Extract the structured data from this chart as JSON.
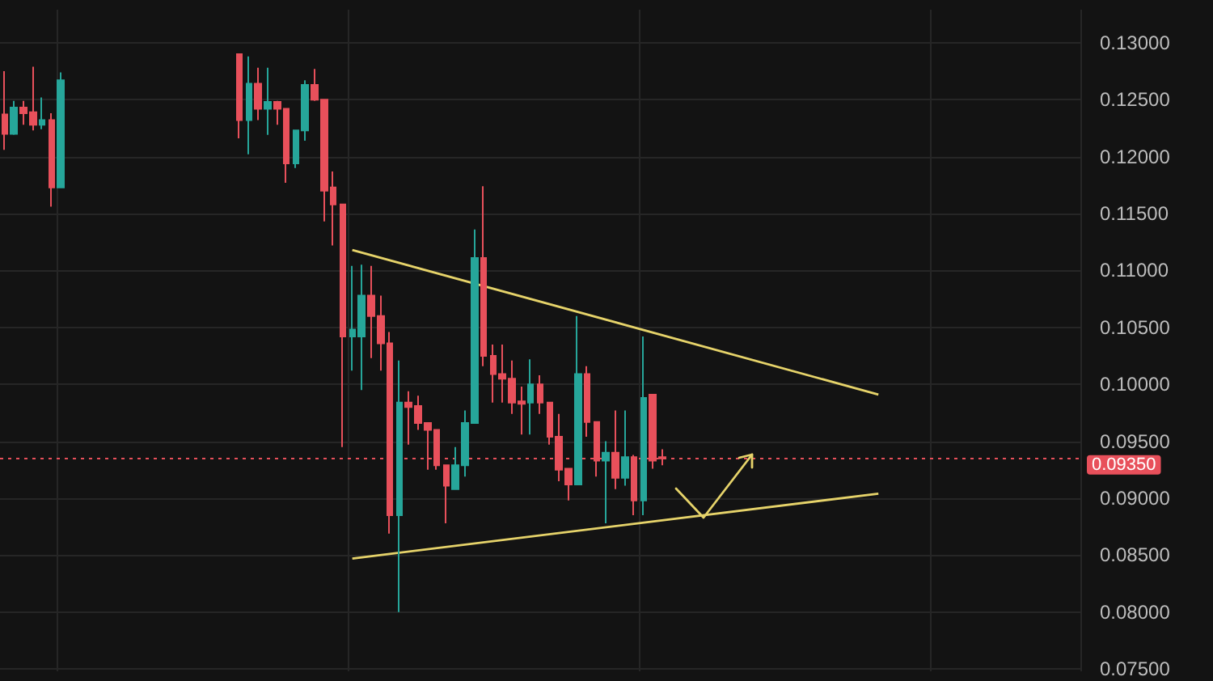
{
  "chart_data": {
    "type": "candlestick",
    "categories": [
      null,
      null,
      null,
      null,
      null,
      null,
      null,
      null,
      null,
      null,
      null,
      null,
      null,
      null,
      null,
      null,
      null,
      null,
      null,
      null,
      null,
      null,
      null,
      null,
      null,
      null,
      null,
      null,
      null,
      null,
      null,
      null,
      null,
      null,
      null,
      null,
      null,
      null,
      null,
      null,
      null,
      null,
      null,
      null,
      null,
      null,
      null,
      null,
      null,
      null,
      null,
      null,
      null,
      null,
      null,
      null,
      null,
      null,
      null,
      null,
      null,
      null,
      null,
      null,
      null,
      null,
      null,
      null,
      null,
      null,
      null,
      null,
      null,
      null,
      null,
      null,
      null,
      null,
      null,
      null,
      null,
      null,
      null,
      null,
      null,
      null,
      null,
      null,
      null,
      null,
      null,
      null,
      null,
      null,
      null,
      null,
      null,
      null,
      null,
      null,
      null,
      null,
      null,
      null,
      null,
      null,
      null,
      null,
      null,
      null,
      null,
      null,
      null,
      null,
      null
    ],
    "ohlc": [
      [
        0.1237,
        0.1275,
        0.1206,
        0.122
      ],
      [
        0.122,
        0.1249,
        0.1219,
        0.1243
      ],
      [
        0.1243,
        0.1249,
        0.1228,
        0.1238
      ],
      [
        0.1239,
        0.1279,
        0.1223,
        0.1228
      ],
      [
        0.1228,
        0.1252,
        0.1224,
        0.1232
      ],
      [
        0.1232,
        0.1238,
        0.1156,
        0.1173
      ],
      [
        0.1173,
        0.1274,
        0.1173,
        0.1267
      ],
      null,
      null,
      null,
      null,
      null,
      null,
      null,
      null,
      null,
      null,
      null,
      null,
      null,
      null,
      null,
      null,
      null,
      null,
      [
        0.129,
        0.129,
        0.1216,
        0.1232
      ],
      [
        0.1232,
        0.1288,
        0.1202,
        0.1264
      ],
      [
        0.1264,
        0.1278,
        0.1232,
        0.1242
      ],
      [
        0.1242,
        0.1278,
        0.1219,
        0.1248
      ],
      [
        0.1248,
        0.1249,
        0.1228,
        0.1242
      ],
      [
        0.1242,
        0.1242,
        0.1177,
        0.1194
      ],
      [
        0.1194,
        0.1223,
        0.119,
        0.1223
      ],
      [
        0.1223,
        0.1267,
        0.1214,
        0.1263
      ],
      [
        0.1263,
        0.1277,
        0.1249,
        0.125
      ],
      [
        0.125,
        0.125,
        0.1143,
        0.117
      ],
      [
        0.1173,
        0.1187,
        0.1122,
        0.1158
      ],
      [
        0.1158,
        0.1158,
        0.0945,
        0.1042
      ],
      [
        0.1042,
        0.1104,
        0.1012,
        0.1048
      ],
      [
        0.1042,
        0.1105,
        0.0995,
        0.1078
      ],
      [
        0.1078,
        0.1104,
        0.1023,
        0.106
      ],
      [
        0.106,
        0.1078,
        0.1012,
        0.1036
      ],
      [
        0.1036,
        0.1046,
        0.0869,
        0.0885
      ],
      [
        0.0885,
        0.1021,
        0.08,
        0.0984
      ],
      [
        0.0984,
        0.0994,
        0.0947,
        0.098
      ],
      [
        0.0981,
        0.099,
        0.096,
        0.0966
      ],
      [
        0.0966,
        0.0966,
        0.0925,
        0.096
      ],
      [
        0.096,
        0.096,
        0.0925,
        0.0929
      ],
      [
        0.0929,
        0.0929,
        0.0878,
        0.0911
      ],
      [
        0.0908,
        0.0945,
        0.0908,
        0.0929
      ],
      [
        0.0929,
        0.0977,
        0.0919,
        0.0966
      ],
      [
        0.0966,
        0.1136,
        0.0966,
        0.1111
      ],
      [
        0.1111,
        0.1174,
        0.1016,
        0.1025
      ],
      [
        0.1025,
        0.1035,
        0.0984,
        0.1009
      ],
      [
        0.1009,
        0.1035,
        0.0984,
        0.1005
      ],
      [
        0.1005,
        0.1021,
        0.0974,
        0.0984
      ],
      [
        0.0985,
        0.0998,
        0.0956,
        0.0983
      ],
      [
        0.0984,
        0.1022,
        0.0956,
        0.1
      ],
      [
        0.1,
        0.1008,
        0.0974,
        0.0984
      ],
      [
        0.0984,
        0.0984,
        0.0947,
        0.0954
      ],
      [
        0.0954,
        0.0974,
        0.0915,
        0.0925
      ],
      [
        0.0926,
        0.0926,
        0.0898,
        0.0912
      ],
      [
        0.0912,
        0.106,
        0.0912,
        0.1009
      ],
      [
        0.1009,
        0.1016,
        0.0954,
        0.0967
      ],
      [
        0.0967,
        0.0967,
        0.0919,
        0.0933
      ],
      [
        0.0933,
        0.095,
        0.0878,
        0.094
      ],
      [
        0.094,
        0.0977,
        0.0908,
        0.0918
      ],
      [
        0.0918,
        0.0977,
        0.0911,
        0.0936
      ],
      [
        0.0936,
        0.0938,
        0.0885,
        0.0898
      ],
      [
        0.0898,
        0.1042,
        0.0885,
        0.0988
      ],
      [
        0.0991,
        0.0991,
        0.0926,
        0.0933
      ],
      [
        0.0936,
        0.0943,
        0.0929,
        0.0935
      ],
      null,
      null,
      null,
      null,
      null,
      null,
      null,
      null,
      null,
      null,
      null,
      null,
      null,
      null,
      null,
      null,
      null,
      null,
      null,
      null,
      null,
      null,
      null,
      null,
      null,
      null,
      null,
      null,
      null,
      null,
      null,
      null,
      null,
      null,
      null,
      null,
      null,
      null,
      null,
      null,
      null,
      null,
      null,
      null
    ],
    "series": [
      {
        "type": "line",
        "color": "#e6d36a",
        "values": [
          null,
          null,
          null,
          null,
          null,
          null,
          null,
          null,
          null,
          null,
          null,
          null,
          null,
          null,
          null,
          null,
          null,
          null,
          null,
          null,
          null,
          null,
          null,
          null,
          null,
          null,
          null,
          null,
          null,
          null,
          null,
          null,
          null,
          null,
          null,
          null,
          null,
          0.1118,
          null,
          null,
          null,
          null,
          null,
          null,
          null,
          null,
          null,
          null,
          null,
          null,
          null,
          null,
          null,
          null,
          null,
          null,
          null,
          null,
          null,
          null,
          null,
          null,
          null,
          null,
          null,
          null,
          null,
          null,
          null,
          null,
          null,
          null,
          null,
          null,
          null,
          null,
          null,
          null,
          null,
          null,
          null,
          null,
          null,
          null,
          null,
          null,
          null,
          null,
          null,
          null,
          null,
          null,
          null,
          0.0991,
          null,
          null,
          null,
          null,
          null,
          null,
          null,
          null,
          null,
          null,
          null,
          null,
          null,
          null,
          null,
          null,
          null,
          null,
          null,
          null,
          null
        ]
      },
      {
        "type": "line",
        "color": "#e6d36a",
        "values": [
          null,
          null,
          null,
          null,
          null,
          null,
          null,
          null,
          null,
          null,
          null,
          null,
          null,
          null,
          null,
          null,
          null,
          null,
          null,
          null,
          null,
          null,
          null,
          null,
          null,
          null,
          null,
          null,
          null,
          null,
          null,
          null,
          null,
          null,
          null,
          null,
          null,
          0.0847,
          null,
          null,
          null,
          null,
          null,
          null,
          null,
          null,
          null,
          null,
          null,
          null,
          null,
          null,
          null,
          null,
          null,
          null,
          null,
          null,
          null,
          null,
          null,
          null,
          null,
          null,
          null,
          null,
          null,
          null,
          null,
          null,
          null,
          null,
          null,
          null,
          null,
          null,
          null,
          null,
          null,
          null,
          null,
          null,
          null,
          null,
          null,
          null,
          null,
          null,
          null,
          null,
          null,
          null,
          null,
          0.0904,
          null,
          null,
          null,
          null,
          null,
          null,
          null,
          null,
          null,
          null,
          null,
          null,
          null,
          null,
          null,
          null,
          null,
          null,
          null,
          null,
          null
        ]
      }
    ],
    "ylim": [
      0.0748,
      0.1329
    ],
    "yticks": [
      {
        "value": 0.075,
        "label": "0.07500"
      },
      {
        "value": 0.08,
        "label": "0.08000"
      },
      {
        "value": 0.085,
        "label": "0.08500"
      },
      {
        "value": 0.09,
        "label": "0.09000"
      },
      {
        "value": 0.095,
        "label": "0.09500"
      },
      {
        "value": 0.1,
        "label": "0.10000"
      },
      {
        "value": 0.105,
        "label": "0.10500"
      },
      {
        "value": 0.11,
        "label": "0.11000"
      },
      {
        "value": 0.115,
        "label": "0.11500"
      },
      {
        "value": 0.12,
        "label": "0.12000"
      },
      {
        "value": 0.125,
        "label": "0.12500"
      },
      {
        "value": 0.13,
        "label": "0.13000"
      }
    ],
    "ref_lines": [
      {
        "axis": "y",
        "value": 0.0935,
        "label": "0.09350",
        "color": "#e8505b",
        "line_style": "dotted"
      }
    ],
    "tick_labels": "y",
    "grid": true
  }
}
